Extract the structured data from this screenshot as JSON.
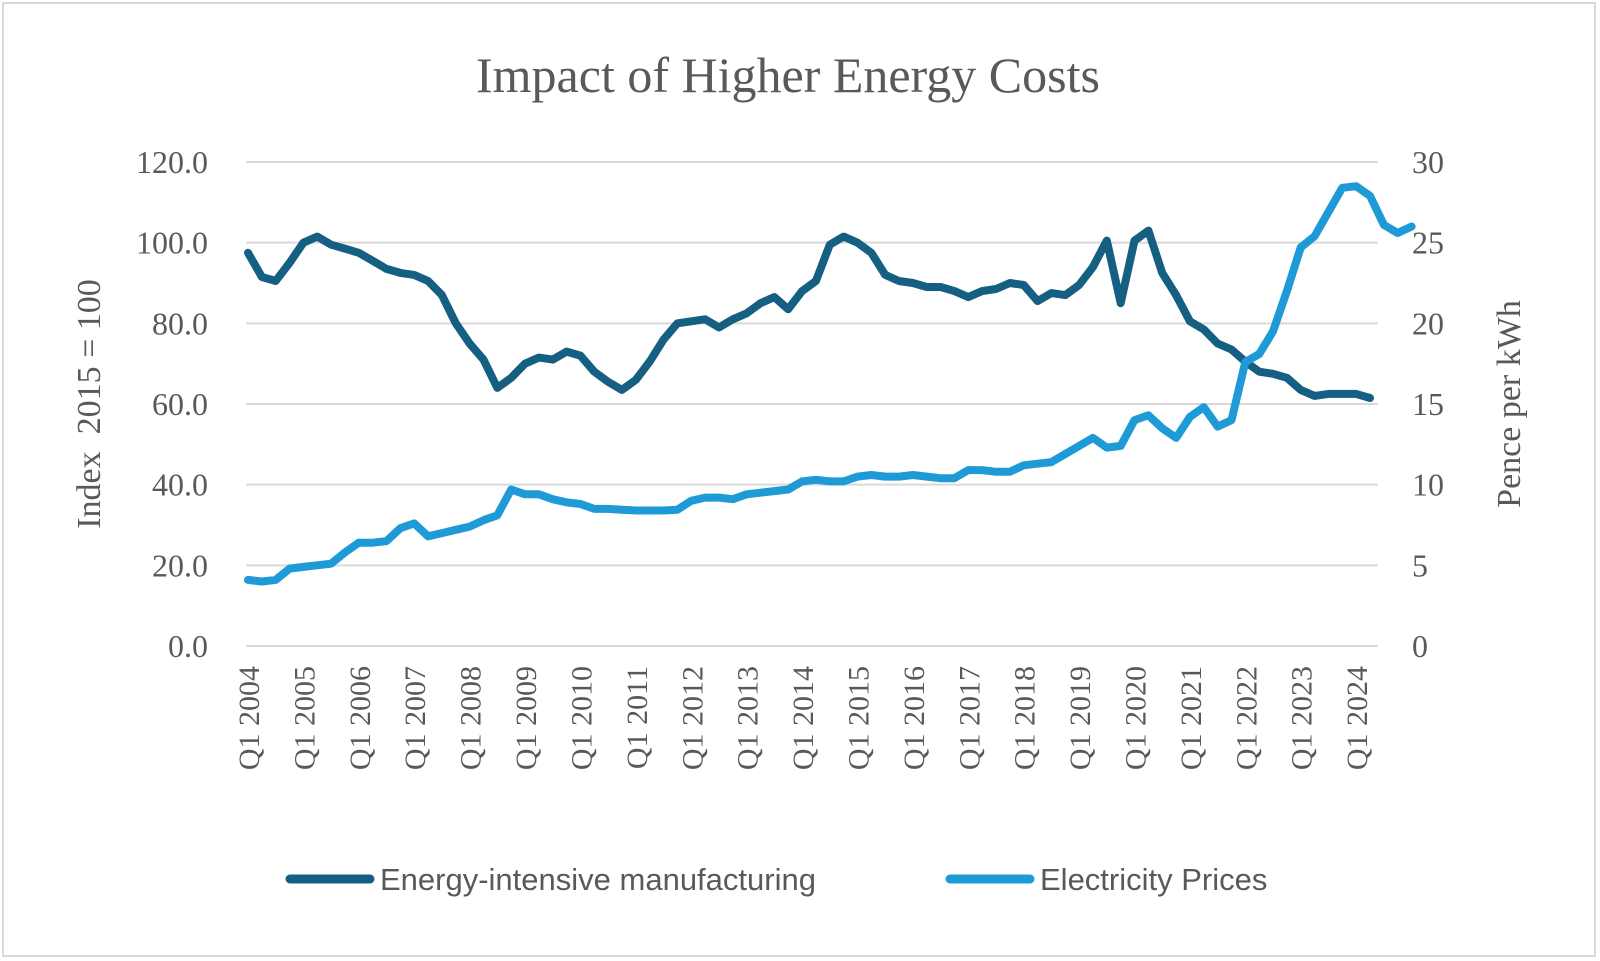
{
  "chart_data": {
    "type": "line",
    "title": "Impact of Higher Energy Costs",
    "ylabel_left": "Index  2015 = 100",
    "ylabel_right": "Pence per kWh",
    "y_left": {
      "min": 0,
      "max": 120,
      "ticks": [
        "0.0",
        "20.0",
        "40.0",
        "60.0",
        "80.0",
        "100.0",
        "120.0"
      ]
    },
    "y_right": {
      "min": 0,
      "max": 30,
      "ticks": [
        "0",
        "5",
        "10",
        "15",
        "20",
        "25",
        "30"
      ]
    },
    "x_tick_labels": [
      "Q1 2004",
      "Q1 2005",
      "Q1 2006",
      "Q1 2007",
      "Q1 2008",
      "Q1 2009",
      "Q1 2010",
      "Q1 2011",
      "Q1 2012",
      "Q1 2013",
      "Q1 2014",
      "Q1 2015",
      "Q1 2016",
      "Q1 2017",
      "Q1 2018",
      "Q1 2019",
      "Q1 2020",
      "Q1 2021",
      "Q1 2022",
      "Q1 2023",
      "Q1 2024"
    ],
    "grid": true,
    "legend_position": "bottom",
    "series": [
      {
        "name": "Energy-intensive manufacturing",
        "axis": "left",
        "color": "#145f82",
        "values": [
          97.5,
          91.5,
          90.5,
          95,
          100,
          101.5,
          99.5,
          98.5,
          97.5,
          95.5,
          93.5,
          92.5,
          92,
          90.5,
          87,
          80,
          75,
          71,
          64,
          66.5,
          70,
          71.5,
          71,
          73,
          72,
          68,
          65.5,
          63.5,
          66,
          70.5,
          76,
          80,
          80.5,
          81,
          79,
          81,
          82.5,
          85,
          86.5,
          83.5,
          88,
          90.5,
          99.5,
          101.5,
          100,
          97.5,
          92,
          90.5,
          90,
          89,
          89,
          88,
          86.5,
          88,
          88.5,
          90,
          89.5,
          85.5,
          87.5,
          87,
          89.5,
          94,
          100.5,
          85,
          100.5,
          103,
          92.5,
          87,
          80.5,
          78.5,
          75,
          73.5,
          70.5,
          68,
          67.5,
          66.5,
          63.5,
          62,
          62.5,
          62.5,
          62.5,
          61.5
        ]
      },
      {
        "name": "Electricity Prices",
        "axis": "right",
        "color": "#1e9bd7",
        "values": [
          4.1,
          4,
          4.1,
          4.8,
          4.9,
          5,
          5.1,
          5.8,
          6.4,
          6.4,
          6.5,
          7.3,
          7.6,
          6.8,
          7,
          7.2,
          7.4,
          7.8,
          8.1,
          9.7,
          9.4,
          9.4,
          9.1,
          8.9,
          8.8,
          8.5,
          8.5,
          8.45,
          8.4,
          8.4,
          8.4,
          8.45,
          9,
          9.2,
          9.2,
          9.1,
          9.4,
          9.5,
          9.6,
          9.7,
          10.2,
          10.3,
          10.2,
          10.2,
          10.5,
          10.6,
          10.5,
          10.5,
          10.6,
          10.5,
          10.4,
          10.4,
          10.9,
          10.9,
          10.8,
          10.8,
          11.2,
          11.3,
          11.4,
          11.9,
          12.4,
          12.9,
          12.3,
          12.4,
          14,
          14.3,
          13.5,
          12.9,
          14.2,
          14.8,
          13.6,
          14,
          17.6,
          18.1,
          19.5,
          22,
          24.7,
          25.4,
          26.9,
          28.4,
          28.5,
          27.9,
          26.1,
          25.6,
          26
        ]
      }
    ]
  }
}
